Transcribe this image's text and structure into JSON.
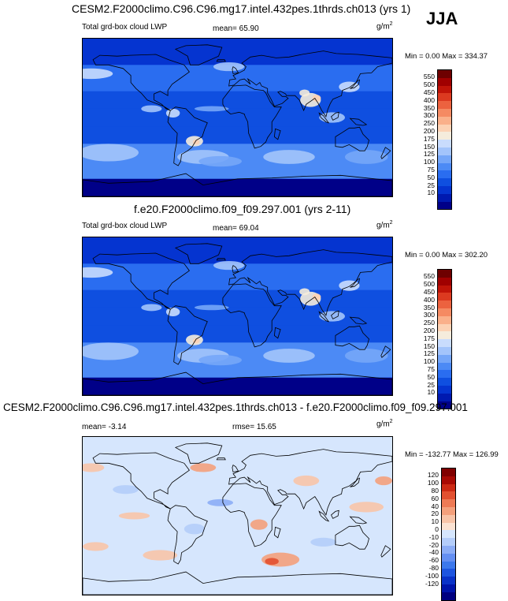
{
  "season": "JJA",
  "units": {
    "base": "g/m",
    "exp": "2"
  },
  "palette_abs": [
    "#000088",
    "#0019b0",
    "#0534d0",
    "#0f4fe0",
    "#2a6df0",
    "#4c8af5",
    "#75a6f8",
    "#a3c4fb",
    "#c9dcfd",
    "#f5ecdc",
    "#fcd2b4",
    "#fab08a",
    "#f58a62",
    "#ec623f",
    "#dc3a20",
    "#c01408",
    "#a00000",
    "#6e0000"
  ],
  "palette_diff": [
    "#000080",
    "#0014aa",
    "#0a32c8",
    "#1e55e0",
    "#3c78ec",
    "#648ff2",
    "#8cadf6",
    "#b4cdfa",
    "#d6e6fd",
    "#fbe2d2",
    "#f8c4a8",
    "#f4a07c",
    "#ee7a55",
    "#e25030",
    "#cc2a14",
    "#a80a04",
    "#800000"
  ],
  "panels": [
    {
      "title": "CESM2.F2000climo.C96.C96.mg17.intel.432pes.1thrds.ch013 (yrs 1)",
      "left_label": "Total grd-box cloud LWP",
      "stat1": "mean=  65.90",
      "minmax": "Min =   0.00 Max = 334.37",
      "levels": [
        "550",
        "500",
        "450",
        "400",
        "350",
        "300",
        "250",
        "200",
        "175",
        "150",
        "125",
        "100",
        "75",
        "50",
        "25",
        "10"
      ],
      "kind": "abs"
    },
    {
      "title": "f.e20.F2000climo.f09_f09.297.001 (yrs 2-11)",
      "left_label": "Total grd-box cloud LWP",
      "stat1": "mean=  69.04",
      "minmax": "Min =   0.00 Max = 302.20",
      "levels": [
        "550",
        "500",
        "450",
        "400",
        "350",
        "300",
        "250",
        "200",
        "175",
        "150",
        "125",
        "100",
        "75",
        "50",
        "25",
        "10"
      ],
      "kind": "abs"
    },
    {
      "title": "CESM2.F2000climo.C96.C96.mg17.intel.432pes.1thrds.ch013 - f.e20.F2000climo.f09_f09.297.001",
      "left_label": "mean=  -3.14",
      "stat1": "rmse=  15.65",
      "minmax": "Min = -132.77 Max = 126.99",
      "levels": [
        "120",
        "100",
        "80",
        "60",
        "40",
        "20",
        "10",
        "0",
        "-10",
        "-20",
        "-40",
        "-60",
        "-80",
        "-100",
        "-120"
      ],
      "kind": "diff"
    }
  ]
}
